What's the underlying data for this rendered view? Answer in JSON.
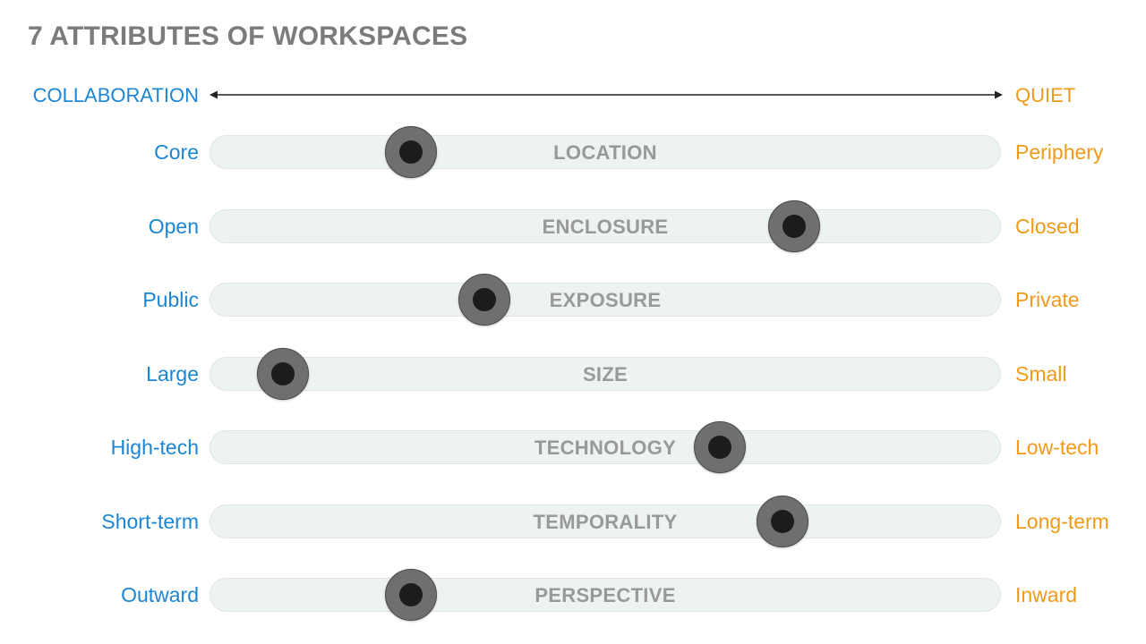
{
  "title": "7 ATTRIBUTES OF WORKSPACES",
  "axis": {
    "left": "COLLABORATION",
    "right": "QUIET"
  },
  "colors": {
    "collaboration": "#1b86d3",
    "quiet": "#f09a1a",
    "track": "#edf2f2",
    "knob": "#6f6f6f",
    "title": "#7b7b7b"
  },
  "rows": [
    {
      "left": "Core",
      "label": "LOCATION",
      "right": "Periphery",
      "position": 0.255
    },
    {
      "left": "Open",
      "label": "ENCLOSURE",
      "right": "Closed",
      "position": 0.739
    },
    {
      "left": "Public",
      "label": "EXPOSURE",
      "right": "Private",
      "position": 0.347
    },
    {
      "left": "Large",
      "label": "SIZE",
      "right": "Small",
      "position": 0.093
    },
    {
      "left": "High-tech",
      "label": "TECHNOLOGY",
      "right": "Low-tech",
      "position": 0.645
    },
    {
      "left": "Short-term",
      "label": "TEMPORALITY",
      "right": "Long-term",
      "position": 0.724
    },
    {
      "left": "Outward",
      "label": "PERSPECTIVE",
      "right": "Inward",
      "position": 0.255
    }
  ]
}
